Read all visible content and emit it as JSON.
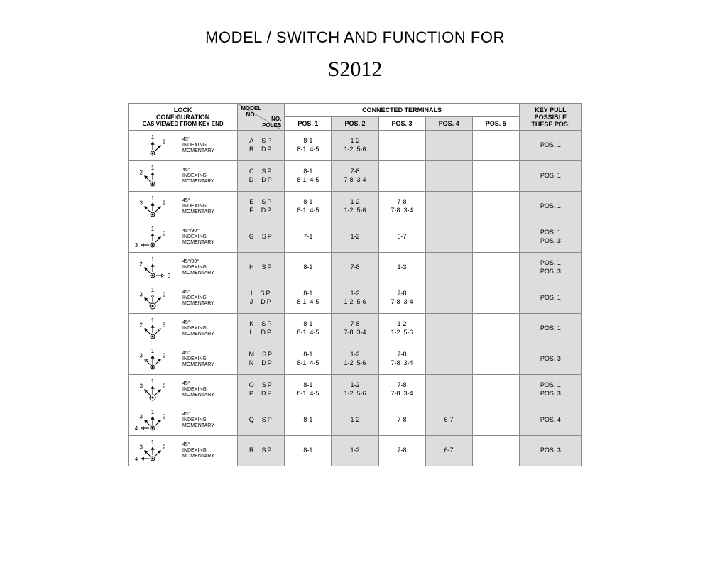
{
  "title": "MODEL / SWITCH AND FUNCTION FOR",
  "subtitle": "S2012",
  "headers": {
    "lock_line1": "LOCK",
    "lock_line2": "CONFIGURATION",
    "lock_line3": "CAS VIEWED FROM KEY END",
    "model_no": "MODEL",
    "model_no2": "NO.",
    "no_poles": "NO.",
    "no_poles2": "POLES",
    "conn_terms": "CONNECTED TERMINALS",
    "pos1": "POS. 1",
    "pos2": "POS. 2",
    "pos3": "POS. 3",
    "pos4": "POS. 4",
    "pos5": "POS. 5",
    "keypull1": "KEY PULL",
    "keypull2": "POSSIBLE",
    "keypull3": "THESE POS."
  },
  "colors": {
    "shade": "#dddddd",
    "border": "#888888",
    "text": "#000000"
  },
  "rows": [
    {
      "diagram": {
        "center": "filled",
        "arrows": [
          {
            "angle": 90,
            "label": "1",
            "fill": true
          },
          {
            "angle": 45,
            "label": "2",
            "fill": true
          }
        ]
      },
      "desc1": "45°",
      "desc2": "INDEXING",
      "desc3": "MOMENTARY",
      "models": [
        {
          "m": "A",
          "p": "SP"
        },
        {
          "m": "B",
          "p": "DP"
        }
      ],
      "terms": {
        "p1": [
          "8-1",
          "8-1  4-5"
        ],
        "p2": [
          "1-2",
          "1-2  5-6"
        ],
        "p3": [
          "",
          ""
        ],
        "p4": [
          "",
          ""
        ],
        "p5": [
          "",
          ""
        ]
      },
      "keypull": [
        "POS. 1"
      ]
    },
    {
      "diagram": {
        "center": "filled",
        "arrows": [
          {
            "angle": 135,
            "label": "2",
            "fill": true
          },
          {
            "angle": 90,
            "label": "1",
            "fill": true
          }
        ]
      },
      "desc1": "45°",
      "desc2": "INDEXING",
      "desc3": "MOMENTARY",
      "models": [
        {
          "m": "C",
          "p": "SP"
        },
        {
          "m": "D",
          "p": "DP"
        }
      ],
      "terms": {
        "p1": [
          "8-1",
          "8-1  4-5"
        ],
        "p2": [
          "7-8",
          "7-8  3-4"
        ],
        "p3": [
          "",
          ""
        ],
        "p4": [
          "",
          ""
        ],
        "p5": [
          "",
          ""
        ]
      },
      "keypull": [
        "POS. 1"
      ]
    },
    {
      "diagram": {
        "center": "filled",
        "arrows": [
          {
            "angle": 135,
            "label": "3",
            "fill": true
          },
          {
            "angle": 90,
            "label": "1",
            "fill": true
          },
          {
            "angle": 45,
            "label": "2",
            "fill": true
          }
        ]
      },
      "desc1": "45°",
      "desc2": "INDEXING",
      "desc3": "MOMENTARY",
      "models": [
        {
          "m": "E",
          "p": "SP"
        },
        {
          "m": "F",
          "p": "DP"
        }
      ],
      "terms": {
        "p1": [
          "8-1",
          "8-1  4-5"
        ],
        "p2": [
          "1-2",
          "1-2  5-6"
        ],
        "p3": [
          "7-8",
          "7-8  3-4"
        ],
        "p4": [
          "",
          ""
        ],
        "p5": [
          "",
          ""
        ]
      },
      "keypull": [
        "POS. 1"
      ]
    },
    {
      "diagram": {
        "center": "filled",
        "arrows": [
          {
            "angle": 180,
            "label": "3",
            "fill": false
          },
          {
            "angle": 90,
            "label": "1",
            "fill": true
          },
          {
            "angle": 45,
            "label": "2",
            "fill": true
          }
        ]
      },
      "desc1": "45°/90°",
      "desc2": "INDEXING",
      "desc3": "MOMENTARY",
      "models": [
        {
          "m": "G",
          "p": "SP"
        }
      ],
      "terms": {
        "p1": [
          "7-1"
        ],
        "p2": [
          "1-2"
        ],
        "p3": [
          "6-7"
        ],
        "p4": [
          ""
        ],
        "p5": [
          ""
        ]
      },
      "keypull": [
        "POS. 1",
        "POS. 3"
      ]
    },
    {
      "diagram": {
        "center": "filled",
        "arrows": [
          {
            "angle": 135,
            "label": "2",
            "fill": true
          },
          {
            "angle": 90,
            "label": "1",
            "fill": true
          },
          {
            "angle": 0,
            "label": "3",
            "fill": false
          }
        ]
      },
      "desc1": "45°/90°",
      "desc2": "INDEXING",
      "desc3": "MOMENTARY",
      "models": [
        {
          "m": "H",
          "p": "SP"
        }
      ],
      "terms": {
        "p1": [
          "8-1"
        ],
        "p2": [
          "7-8"
        ],
        "p3": [
          "1-3"
        ],
        "p4": [
          ""
        ],
        "p5": [
          ""
        ]
      },
      "keypull": [
        "POS. 1",
        "POS. 3"
      ]
    },
    {
      "diagram": {
        "center": "double",
        "arrows": [
          {
            "angle": 135,
            "label": "3",
            "fill": true
          },
          {
            "angle": 90,
            "label": "1",
            "fill": false
          },
          {
            "angle": 45,
            "label": "2",
            "fill": true
          }
        ]
      },
      "desc1": "45°",
      "desc2": "INDEXING",
      "desc3": "MOMENTARY",
      "models": [
        {
          "m": "I",
          "p": "SP"
        },
        {
          "m": "J",
          "p": "DP"
        }
      ],
      "terms": {
        "p1": [
          "8-1",
          "8-1  4-5"
        ],
        "p2": [
          "1-2",
          "1-2  5-6"
        ],
        "p3": [
          "7-8",
          "7-8  3-4"
        ],
        "p4": [
          "",
          ""
        ],
        "p5": [
          "",
          ""
        ]
      },
      "keypull": [
        "POS. 1"
      ]
    },
    {
      "diagram": {
        "center": "filled",
        "arrows": [
          {
            "angle": 135,
            "label": "2",
            "fill": true
          },
          {
            "angle": 90,
            "label": "1",
            "fill": true
          },
          {
            "angle": 45,
            "label": "3",
            "fill": false
          }
        ]
      },
      "desc1": "45°",
      "desc2": "INDEXING",
      "desc3": "MOMENTARY",
      "models": [
        {
          "m": "K",
          "p": "SP"
        },
        {
          "m": "L",
          "p": "DP"
        }
      ],
      "terms": {
        "p1": [
          "8-1",
          "8-1  4-5"
        ],
        "p2": [
          "7-8",
          "7-8  3-4"
        ],
        "p3": [
          "1-2",
          "1-2  5-6"
        ],
        "p4": [
          "",
          ""
        ],
        "p5": [
          "",
          ""
        ]
      },
      "keypull": [
        "POS. 1"
      ]
    },
    {
      "diagram": {
        "center": "filled",
        "arrows": [
          {
            "angle": 135,
            "label": "3",
            "fill": false
          },
          {
            "angle": 90,
            "label": "1",
            "fill": true
          },
          {
            "angle": 45,
            "label": "2",
            "fill": true
          }
        ]
      },
      "desc1": "45°",
      "desc2": "INDEXING",
      "desc3": "MOMENTARY",
      "models": [
        {
          "m": "M",
          "p": "SP"
        },
        {
          "m": "N",
          "p": "DP"
        }
      ],
      "terms": {
        "p1": [
          "8-1",
          "8-1  4-5"
        ],
        "p2": [
          "1-2",
          "1-2  5-6"
        ],
        "p3": [
          "7-8",
          "7-8  3-4"
        ],
        "p4": [
          "",
          ""
        ],
        "p5": [
          "",
          ""
        ]
      },
      "keypull": [
        "POS. 3"
      ]
    },
    {
      "diagram": {
        "center": "double",
        "arrows": [
          {
            "angle": 135,
            "label": "3",
            "fill": false
          },
          {
            "angle": 90,
            "label": "1",
            "fill": true
          },
          {
            "angle": 45,
            "label": "2",
            "fill": true
          }
        ]
      },
      "desc1": "45°",
      "desc2": "INDEXING",
      "desc3": "MOMENTARY",
      "models": [
        {
          "m": "O",
          "p": "SP"
        },
        {
          "m": "P",
          "p": "DP"
        }
      ],
      "terms": {
        "p1": [
          "8-1",
          "8-1  4-5"
        ],
        "p2": [
          "1-2",
          "1-2  5-6"
        ],
        "p3": [
          "7-8",
          "7-8  3-4"
        ],
        "p4": [
          "",
          ""
        ],
        "p5": [
          "",
          ""
        ]
      },
      "keypull": [
        "POS. 1",
        "POS. 3"
      ]
    },
    {
      "diagram": {
        "center": "filled",
        "arrows": [
          {
            "angle": 180,
            "label": "4",
            "fill": false
          },
          {
            "angle": 135,
            "label": "3",
            "fill": true
          },
          {
            "angle": 90,
            "label": "1",
            "fill": true
          },
          {
            "angle": 45,
            "label": "2",
            "fill": true
          }
        ]
      },
      "desc1": "45°",
      "desc2": "INDEXING",
      "desc3": "MOMENTARY",
      "models": [
        {
          "m": "Q",
          "p": "SP"
        }
      ],
      "terms": {
        "p1": [
          "8-1"
        ],
        "p2": [
          "1-2"
        ],
        "p3": [
          "7-8"
        ],
        "p4": [
          "6-7"
        ],
        "p5": [
          ""
        ]
      },
      "keypull": [
        "POS. 4"
      ]
    },
    {
      "diagram": {
        "center": "filled",
        "arrows": [
          {
            "angle": 180,
            "label": "4",
            "fill": true
          },
          {
            "angle": 135,
            "label": "3",
            "fill": true
          },
          {
            "angle": 90,
            "label": "1",
            "fill": true
          },
          {
            "angle": 45,
            "label": "2",
            "fill": true
          }
        ]
      },
      "desc1": "45°",
      "desc2": "INDEXING",
      "desc3": "MOMENTARY",
      "models": [
        {
          "m": "R",
          "p": "SP"
        }
      ],
      "terms": {
        "p1": [
          "8-1"
        ],
        "p2": [
          "1-2"
        ],
        "p3": [
          "7-8"
        ],
        "p4": [
          "6-7"
        ],
        "p5": [
          ""
        ]
      },
      "keypull": [
        "POS. 3"
      ]
    }
  ]
}
